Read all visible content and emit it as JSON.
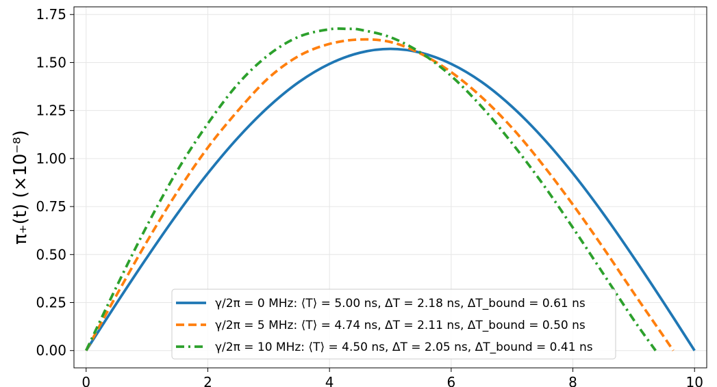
{
  "chart_data": {
    "type": "line",
    "xlabel": "",
    "ylabel": "π₊(t) (×10⁻⁸)",
    "xlim": [
      -0.2,
      10.2
    ],
    "ylim": [
      -0.09,
      1.79
    ],
    "xticks": [
      0,
      2,
      4,
      6,
      8,
      10
    ],
    "xtick_labels": [
      "0",
      "2",
      "4",
      "6",
      "8",
      "10"
    ],
    "yticks": [
      0,
      0.25,
      0.5,
      0.75,
      1.0,
      1.25,
      1.5,
      1.75
    ],
    "ytick_labels": [
      "0.00",
      "0.25",
      "0.50",
      "0.75",
      "1.00",
      "1.25",
      "1.50",
      "1.75"
    ],
    "grid": true,
    "legend_position": "bottom-center",
    "series": [
      {
        "name": "γ/2π = 0 MHz: ⟨T⟩ = 5.00 ns, ΔT = 2.18 ns, ΔT_bound = 0.61 ns",
        "color": "#1f77b4",
        "style": "solid",
        "x": [
          0,
          0.5,
          1,
          1.5,
          2,
          2.5,
          3,
          3.5,
          4,
          4.5,
          5,
          5.5,
          6,
          6.5,
          7,
          7.5,
          8,
          8.5,
          9,
          9.5,
          10
        ],
        "y": [
          0,
          0.246,
          0.485,
          0.713,
          0.923,
          1.11,
          1.27,
          1.399,
          1.493,
          1.551,
          1.571,
          1.551,
          1.493,
          1.399,
          1.27,
          1.11,
          0.923,
          0.713,
          0.485,
          0.246,
          0
        ]
      },
      {
        "name": "γ/2π = 5 MHz: ⟨T⟩ = 4.74 ns, ΔT = 2.11 ns, ΔT_bound = 0.50 ns",
        "color": "#ff7f0e",
        "style": "dashed",
        "x": [
          0,
          0.5,
          1,
          1.5,
          2,
          2.5,
          3,
          3.5,
          4,
          4.5,
          5,
          5.5,
          6,
          6.5,
          7,
          7.5,
          8,
          8.5,
          9,
          9.5,
          9.65
        ],
        "y": [
          0,
          0.289,
          0.568,
          0.827,
          1.057,
          1.251,
          1.42,
          1.535,
          1.597,
          1.62,
          1.607,
          1.546,
          1.45,
          1.32,
          1.16,
          0.97,
          0.76,
          0.535,
          0.3,
          0.07,
          0
        ]
      },
      {
        "name": "γ/2π = 10 MHz: ⟨T⟩ = 4.50 ns, ΔT = 2.05 ns, ΔT_bound = 0.41 ns",
        "color": "#2ca02c",
        "style": "dashdot",
        "x": [
          0,
          0.5,
          1,
          1.5,
          2,
          2.5,
          3,
          3.5,
          4,
          4.3,
          4.5,
          5,
          5.5,
          6,
          6.5,
          7,
          7.5,
          8,
          8.5,
          9,
          9.36
        ],
        "y": [
          0,
          0.333,
          0.65,
          0.938,
          1.182,
          1.39,
          1.54,
          1.635,
          1.673,
          1.675,
          1.671,
          1.632,
          1.551,
          1.43,
          1.27,
          1.08,
          0.87,
          0.64,
          0.4,
          0.16,
          0
        ]
      }
    ]
  }
}
